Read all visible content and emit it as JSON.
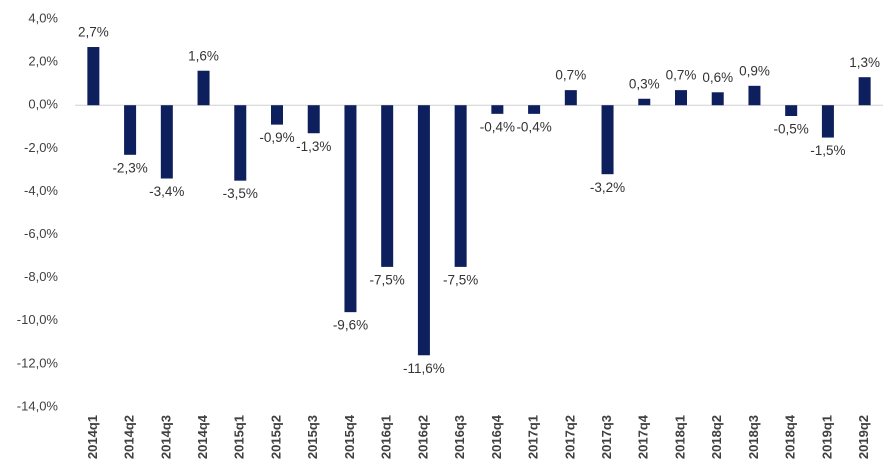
{
  "chart_data": {
    "type": "bar",
    "categories": [
      "2014q1",
      "2014q2",
      "2014q3",
      "2014q4",
      "2015q1",
      "2015q2",
      "2015q3",
      "2015q4",
      "2016q1",
      "2016q2",
      "2016q3",
      "2016q4",
      "2017q1",
      "2017q2",
      "2017q3",
      "2017q4",
      "2018q1",
      "2018q2",
      "2018q3",
      "2018q4",
      "2019q1",
      "2019q2"
    ],
    "values": [
      2.7,
      -2.3,
      -3.4,
      1.6,
      -3.5,
      -0.9,
      -1.3,
      -9.6,
      -7.5,
      -11.6,
      -7.5,
      -0.4,
      -0.4,
      0.7,
      -3.2,
      0.3,
      0.7,
      0.6,
      0.9,
      -0.5,
      -1.5,
      1.3
    ],
    "value_labels": [
      "2,7%",
      "-2,3%",
      "-3,4%",
      "1,6%",
      "-3,5%",
      "-0,9%",
      "-1,3%",
      "-9,6%",
      "-7,5%",
      "-11,6%",
      "-7,5%",
      "-0,4%",
      "-0,4%",
      "0,7%",
      "-3,2%",
      "0,3%",
      "0,7%",
      "0,6%",
      "0,9%",
      "-0,5%",
      "-1,5%",
      "1,3%"
    ],
    "color": "#0d1f5c",
    "ylim": [
      -14,
      4
    ],
    "yticks": [
      {
        "value": 4,
        "label": "4,0%"
      },
      {
        "value": 2,
        "label": "2,0%"
      },
      {
        "value": 0,
        "label": "0,0%"
      },
      {
        "value": -2,
        "label": "-2,0%"
      },
      {
        "value": -4,
        "label": "-4,0%"
      },
      {
        "value": -6,
        "label": "-6,0%"
      },
      {
        "value": -8,
        "label": "-8,0%"
      },
      {
        "value": -10,
        "label": "-10,0%"
      },
      {
        "value": -12,
        "label": "-12,0%"
      },
      {
        "value": -14,
        "label": "-14,0%"
      }
    ],
    "grid": false
  }
}
